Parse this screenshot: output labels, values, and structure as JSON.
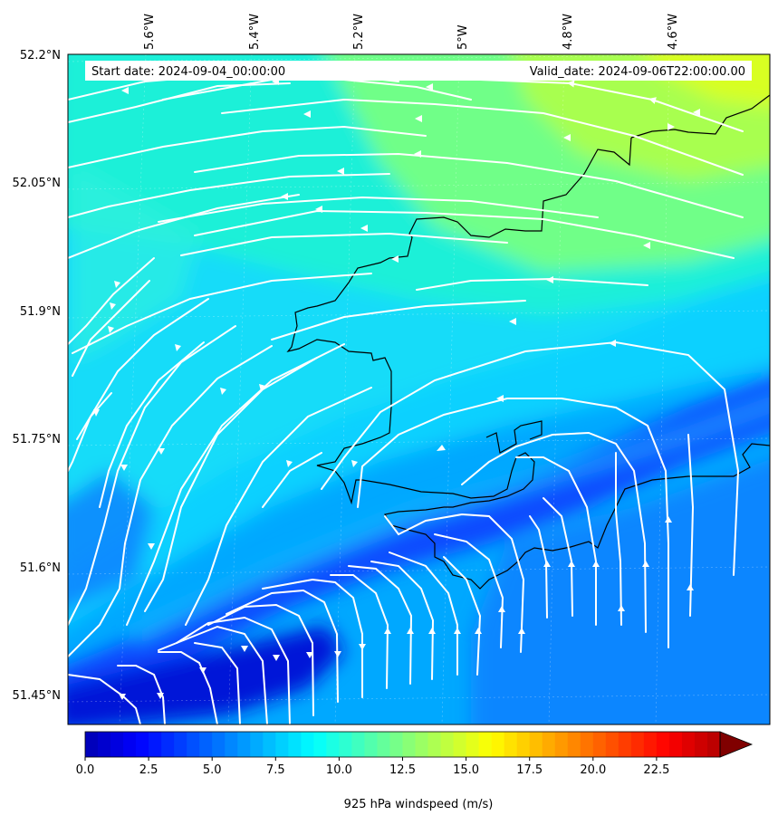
{
  "header": {
    "start_date": "Start date: 2024-09-04_00:00:00",
    "valid_date": "Valid_date: 2024-09-06T22:00:00.00"
  },
  "map": {
    "lon_labels": [
      "5.6°W",
      "5.4°W",
      "5.2°W",
      "5°W",
      "4.8°W",
      "4.6°W"
    ],
    "lat_labels": [
      "52.2°N",
      "52.05°N",
      "51.9°N",
      "51.75°N",
      "51.6°N",
      "51.45°N"
    ],
    "streamline_color": "#ffffff",
    "coastline_color": "#000000",
    "field": "925 hPa windspeed"
  },
  "colorbar": {
    "label": "925 hPa windspeed (m/s)",
    "ticks": [
      "0.0",
      "2.5",
      "5.0",
      "7.5",
      "10.0",
      "12.5",
      "15.0",
      "17.5",
      "20.0",
      "22.5"
    ],
    "min": 0,
    "max": 25,
    "extend": "max",
    "colormap": "jet"
  }
}
